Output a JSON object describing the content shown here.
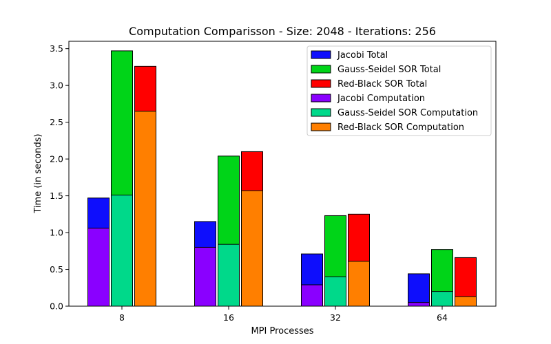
{
  "chart_data": {
    "type": "bar",
    "title": "Computation Comparisson - Size: 2048 - Iterations: 256",
    "xlabel": "MPI Processes",
    "ylabel": "Time (in seconds)",
    "categories": [
      "8",
      "16",
      "32",
      "64"
    ],
    "ylim": [
      0,
      3.6
    ],
    "yticks": [
      0.0,
      0.5,
      1.0,
      1.5,
      2.0,
      2.5,
      3.0,
      3.5
    ],
    "ytick_labels": [
      "0.0",
      "0.5",
      "1.0",
      "1.5",
      "2.0",
      "2.5",
      "3.0",
      "3.5"
    ],
    "grid": false,
    "legend_position": "top-right",
    "series": [
      {
        "name": "Jacobi Total",
        "color": "#0e0efc",
        "group": 0,
        "layer": "total",
        "values": [
          1.47,
          1.15,
          0.71,
          0.44
        ]
      },
      {
        "name": "Gauss-Seidel SOR Total",
        "color": "#00d418",
        "group": 1,
        "layer": "total",
        "values": [
          3.47,
          2.04,
          1.23,
          0.77
        ]
      },
      {
        "name": "Red-Black SOR Total",
        "color": "#ff0000",
        "group": 2,
        "layer": "total",
        "values": [
          3.26,
          2.1,
          1.25,
          0.66
        ]
      },
      {
        "name": "Jacobi Computation",
        "color": "#8a00ff",
        "group": 0,
        "layer": "computation",
        "values": [
          1.06,
          0.8,
          0.29,
          0.05
        ]
      },
      {
        "name": "Gauss-Seidel SOR Computation",
        "color": "#00d98a",
        "group": 1,
        "layer": "computation",
        "values": [
          1.51,
          0.84,
          0.4,
          0.2
        ]
      },
      {
        "name": "Red-Black SOR Computation",
        "color": "#ff7f00",
        "group": 2,
        "layer": "computation",
        "values": [
          2.65,
          1.57,
          0.61,
          0.13
        ]
      }
    ]
  }
}
